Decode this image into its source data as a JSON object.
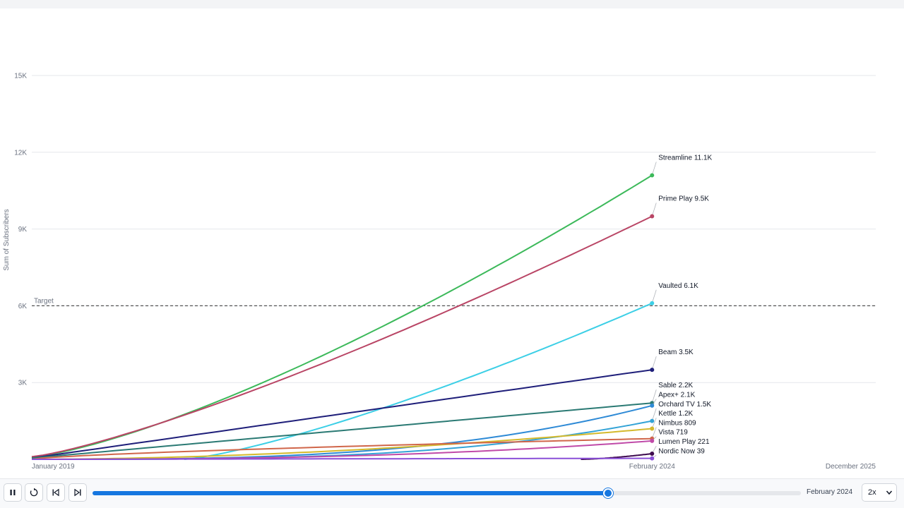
{
  "chart_data": {
    "type": "line",
    "ylabel": "Sum of Subscribers",
    "ylim": [
      0,
      15000
    ],
    "yticks": [
      3000,
      6000,
      9000,
      12000,
      15000
    ],
    "ytick_labels": [
      "3K",
      "6K",
      "9K",
      "12K",
      "15K"
    ],
    "x_range": [
      "January 2019",
      "December 2025"
    ],
    "x_ticks": [
      "January 2019",
      "February 2024",
      "December 2025"
    ],
    "current_date": "February 2024",
    "reference_line": {
      "label": "Target",
      "value": 6000,
      "style": "dashed"
    },
    "grid": true,
    "series": [
      {
        "name": "Streamline",
        "color": "#3cb95a",
        "start": "January 2019",
        "start_value": 100,
        "end_value": 11100,
        "end_label": "11.1K",
        "curve": 1.35
      },
      {
        "name": "Prime Play",
        "color": "#b94565",
        "start": "January 2019",
        "start_value": 100,
        "end_value": 9500,
        "end_label": "9.5K",
        "curve": 1.25
      },
      {
        "name": "Vaulted",
        "color": "#3ccfe6",
        "start": "April 2020",
        "start_value": 0,
        "end_value": 6100,
        "end_label": "6.1K",
        "curve": 1.3
      },
      {
        "name": "Beam",
        "color": "#1f1f7a",
        "start": "January 2019",
        "start_value": 50,
        "end_value": 3500,
        "end_label": "3.5K",
        "curve": 1.0
      },
      {
        "name": "Sable",
        "color": "#2b7a74",
        "start": "January 2019",
        "start_value": 50,
        "end_value": 2200,
        "end_label": "2.2K",
        "curve": 1.0
      },
      {
        "name": "Apex+",
        "color": "#2e8ad6",
        "start": "January 2019",
        "start_value": 0,
        "end_value": 2100,
        "end_label": "2.1K",
        "curve": 3.0
      },
      {
        "name": "Orchard TV",
        "color": "#33a3d6",
        "start": "January 2019",
        "start_value": 0,
        "end_value": 1500,
        "end_label": "1.5K",
        "curve": 3.2
      },
      {
        "name": "Kettle",
        "color": "#d4b92c",
        "start": "January 2019",
        "start_value": 0,
        "end_value": 1200,
        "end_label": "1.2K",
        "curve": 1.8
      },
      {
        "name": "Nimbus",
        "color": "#d0664a",
        "start": "January 2019",
        "start_value": 0,
        "end_value": 809,
        "end_label": "809",
        "curve": 0.7
      },
      {
        "name": "Vista",
        "color": "#c04aa8",
        "start": "January 2019",
        "start_value": 0,
        "end_value": 719,
        "end_label": "719",
        "curve": 2.5
      },
      {
        "name": "Lumen Play",
        "color": "#3d0a4e",
        "start": "July 2023",
        "start_value": 0,
        "end_value": 221,
        "end_label": "221",
        "curve": 1.5
      },
      {
        "name": "Nordic Now",
        "color": "#8a4fd8",
        "start": "January 2019",
        "start_value": 0,
        "end_value": 39,
        "end_label": "39",
        "curve": 1.0
      }
    ]
  },
  "controls": {
    "play_pause_icon": "pause-icon",
    "replay_icon": "replay-icon",
    "prev_icon": "skip-back-icon",
    "next_icon": "skip-forward-icon",
    "slider_progress": 0.728,
    "date_label": "February 2024",
    "speed_value": "2x",
    "speed_options": [
      "2x"
    ]
  }
}
